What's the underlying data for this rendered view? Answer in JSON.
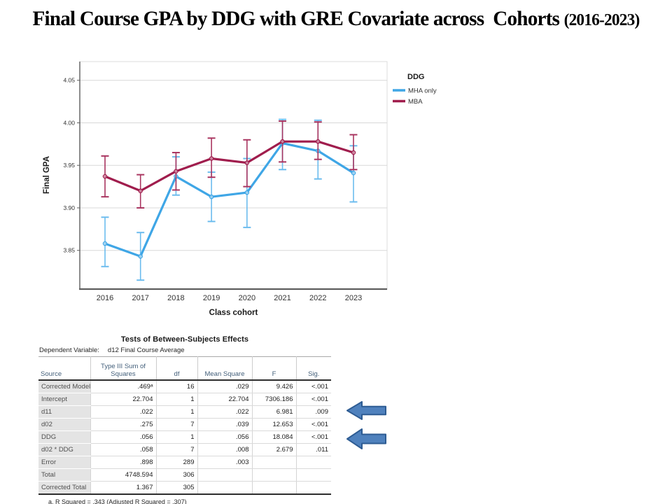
{
  "slide": {
    "title_main": "Final Course GPA by DDG with GRE Covariate across  Cohorts ",
    "title_suffix": "(2016-2023)"
  },
  "chart_data": {
    "type": "line",
    "title": "",
    "xlabel": "Class cohort",
    "ylabel": "Final GPA",
    "categories": [
      "2016",
      "2017",
      "2018",
      "2019",
      "2020",
      "2021",
      "2022",
      "2023"
    ],
    "y_tick_labels": [
      "3.85",
      "3.90",
      "3.95",
      "4.00",
      "4.05"
    ],
    "y_ticks": [
      3.85,
      3.9,
      3.95,
      4.0,
      4.05
    ],
    "ylim": [
      3.805,
      4.072
    ],
    "grid": true,
    "error_bars": true,
    "legend": {
      "title": "DDG",
      "position": "right-top",
      "entries": [
        "MHA only",
        "MBA"
      ]
    },
    "series": [
      {
        "name": "MHA only",
        "color": "#3FA6E6",
        "ci_color": "#6CBCEE",
        "values": [
          3.858,
          3.843,
          3.937,
          3.913,
          3.918,
          3.976,
          3.967,
          3.941
        ],
        "ci_low": [
          3.831,
          3.815,
          3.915,
          3.884,
          3.877,
          3.945,
          3.934,
          3.907
        ],
        "ci_high": [
          3.889,
          3.871,
          3.96,
          3.942,
          3.958,
          4.004,
          4.003,
          3.973
        ]
      },
      {
        "name": "MBA",
        "color": "#A01D4D",
        "ci_color": "#A93560",
        "values": [
          3.937,
          3.92,
          3.943,
          3.958,
          3.953,
          3.978,
          3.978,
          3.965
        ],
        "ci_low": [
          3.913,
          3.9,
          3.921,
          3.936,
          3.925,
          3.954,
          3.957,
          3.945
        ],
        "ci_high": [
          3.961,
          3.939,
          3.965,
          3.982,
          3.98,
          4.002,
          4.001,
          3.986
        ]
      }
    ]
  },
  "table": {
    "title": "Tests of Between-Subjects Effects",
    "dependent_variable_label": "Dependent Variable:",
    "dependent_variable": "d12 Final Course Average",
    "columns": [
      "Source",
      "Type III Sum of Squares",
      "df",
      "Mean Square",
      "F",
      "Sig."
    ],
    "rows": [
      [
        "Corrected Model",
        ".469ᵃ",
        "16",
        ".029",
        "9.426",
        "<.001"
      ],
      [
        "Intercept",
        "22.704",
        "1",
        "22.704",
        "7306.186",
        "<.001"
      ],
      [
        "d11",
        ".022",
        "1",
        ".022",
        "6.981",
        ".009"
      ],
      [
        "d02",
        ".275",
        "7",
        ".039",
        "12.653",
        "<.001"
      ],
      [
        "DDG",
        ".056",
        "1",
        ".056",
        "18.084",
        "<.001"
      ],
      [
        "d02 * DDG",
        ".058",
        "7",
        ".008",
        "2.679",
        ".011"
      ],
      [
        "Error",
        ".898",
        "289",
        ".003",
        "",
        ""
      ],
      [
        "Total",
        "4748.594",
        "306",
        "",
        "",
        ""
      ],
      [
        "Corrected Total",
        "1.367",
        "305",
        "",
        "",
        ""
      ]
    ],
    "footnote": "a. R Squared = .343 (Adjusted R Squared = .307)"
  },
  "annotations": {
    "arrow_fill": "#4F81BD",
    "arrow_stroke": "#2E5C93",
    "arrows": [
      "points-to-d11-row",
      "points-to-DDG-row"
    ]
  },
  "colors": {
    "grid": "#D8D8D8",
    "plot_border": "#DCDCDC",
    "axis": "#5E5E5E",
    "tick_text": "#333333"
  }
}
